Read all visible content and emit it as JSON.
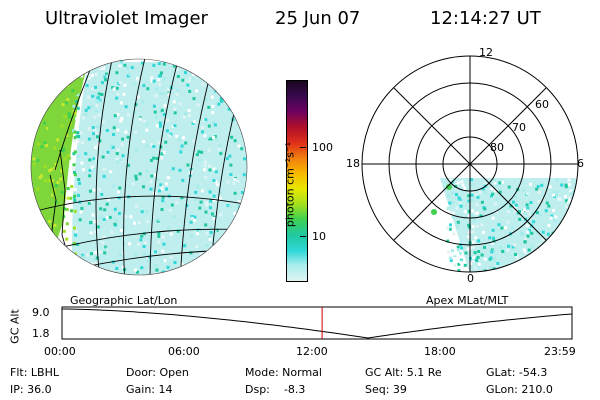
{
  "header": {
    "instrument": "Ultraviolet Imager",
    "date": "25 Jun 07",
    "time": "12:14:27 UT"
  },
  "left_panel": {
    "label": "Geographic Lat/Lon"
  },
  "right_panel": {
    "label": "Apex MLat/MLT",
    "mlt_labels": {
      "top": "12",
      "left": "18",
      "right": "6",
      "bottom": "0"
    },
    "lat_labels": [
      "60",
      "70",
      "80"
    ]
  },
  "colorbar": {
    "unit_label": "photon cm⁻²s⁻¹",
    "ticks": [
      "100",
      "10"
    ],
    "colors": [
      "#1a0620",
      "#3a0a50",
      "#6a0060",
      "#b0102a",
      "#e0301a",
      "#f07a10",
      "#f8b800",
      "#e8e800",
      "#a0e020",
      "#40d050",
      "#20c8a0",
      "#30d8d8",
      "#a8ecec",
      "#e0f4f4"
    ]
  },
  "timeline": {
    "axis_label": "GC Alt",
    "y_ticks": [
      "9.0",
      "1.8"
    ],
    "x_ticks": [
      "00:00",
      "06:00",
      "12:00",
      "18:00",
      "23:59"
    ],
    "current_time_fraction": 0.51,
    "curve_color": "#000000",
    "marker_color": "#cc0000"
  },
  "status": {
    "filter": "Flt: LBHL",
    "ip": "IP: 36.0",
    "door": "Door: Open",
    "gain": "Gain: 14",
    "mode": "Mode: Normal",
    "dsp": "Dsp:    -8.3",
    "gc_alt": "GC Alt: 5.1 Re",
    "seq": "Seq: 39",
    "glat": "GLat: -54.3",
    "glon": "GLon: 210.0"
  }
}
